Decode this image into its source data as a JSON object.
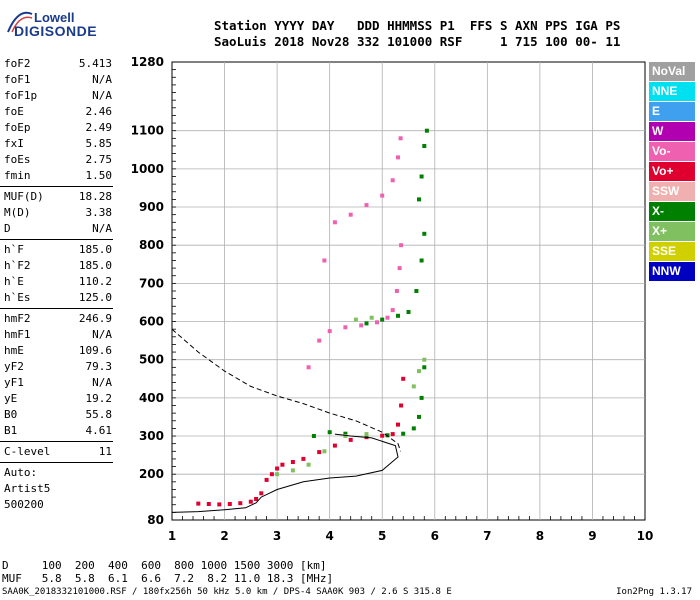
{
  "logo": {
    "top": "Lowell",
    "main": "DIGISONDE"
  },
  "header": {
    "line1": "Station YYYY DAY   DDD HHMMSS P1  FFS S AXN PPS IGA PS",
    "line2": "SaoLuis 2018 Nov28 332 101000 RSF     1 715 100 00- 11"
  },
  "params_group1": [
    {
      "name": "foF2",
      "value": "5.413"
    },
    {
      "name": "foF1",
      "value": "N/A"
    },
    {
      "name": "foF1p",
      "value": "N/A"
    },
    {
      "name": "foE",
      "value": "2.46"
    },
    {
      "name": "foEp",
      "value": "2.49"
    },
    {
      "name": "fxI",
      "value": "5.85"
    },
    {
      "name": "foEs",
      "value": "2.75"
    },
    {
      "name": "fmin",
      "value": "1.50"
    }
  ],
  "params_group2": [
    {
      "name": "MUF(D)",
      "value": "18.28"
    },
    {
      "name": "M(D)",
      "value": "3.38"
    },
    {
      "name": "D",
      "value": "N/A"
    }
  ],
  "params_group3": [
    {
      "name": "h`F",
      "value": "185.0"
    },
    {
      "name": "h`F2",
      "value": "185.0"
    },
    {
      "name": "h`E",
      "value": "110.2"
    },
    {
      "name": "h`Es",
      "value": "125.0"
    }
  ],
  "params_group4": [
    {
      "name": "hmF2",
      "value": "246.9"
    },
    {
      "name": "hmF1",
      "value": "N/A"
    },
    {
      "name": "hmE",
      "value": "109.6"
    },
    {
      "name": "yF2",
      "value": "79.3"
    },
    {
      "name": "yF1",
      "value": "N/A"
    },
    {
      "name": "yE",
      "value": "19.2"
    },
    {
      "name": "B0",
      "value": "55.8"
    },
    {
      "name": "B1",
      "value": "4.61"
    }
  ],
  "clevel": {
    "name": "C-level",
    "value": "11"
  },
  "auto": {
    "line1": "Auto:",
    "line2": "Artist5",
    "line3": "500200"
  },
  "legend": [
    {
      "label": "NoVal",
      "color": "#a0a0a0"
    },
    {
      "label": "NNE",
      "color": "#00e0f0"
    },
    {
      "label": "E",
      "color": "#40a0f0"
    },
    {
      "label": "W",
      "color": "#b000b0"
    },
    {
      "label": "Vo-",
      "color": "#f060b0"
    },
    {
      "label": "Vo+",
      "color": "#e00030"
    },
    {
      "label": "SSW",
      "color": "#f0b0b0"
    },
    {
      "label": "X-",
      "color": "#008000"
    },
    {
      "label": "X+",
      "color": "#80c060"
    },
    {
      "label": "SSE",
      "color": "#d0d000"
    },
    {
      "label": "NNW",
      "color": "#0000c0"
    }
  ],
  "bottom": {
    "d_row": "D     100  200  400  600  800 1000 1500 3000 [km]",
    "muf_row": "MUF   5.8  5.8  6.1  6.6  7.2  8.2 11.0 18.3 [MHz]"
  },
  "footer": {
    "left": "SAA0K_2018332101000.RSF / 180fx256h 50 kHz 5.0 km / DPS-4 SAA0K 903 / 2.6 S 315.8 E",
    "right": "Ion2Png 1.3.17"
  },
  "chart_data": {
    "type": "scatter",
    "title": "",
    "xlabel": "",
    "ylabel": "",
    "xlim": [
      1,
      10
    ],
    "ylim": [
      80,
      1280
    ],
    "x_ticks": [
      "1",
      "2",
      "3",
      "4",
      "5",
      "6",
      "7",
      "8",
      "9",
      "10"
    ],
    "y_ticks": [
      "80",
      "200",
      "300",
      "400",
      "500",
      "600",
      "700",
      "800",
      "900",
      "1000",
      "1100",
      "1280"
    ],
    "grid": true,
    "legend_position": "right",
    "series": [
      {
        "name": "Vo+",
        "color": "#e00030",
        "points": [
          [
            1.5,
            123
          ],
          [
            1.7,
            122
          ],
          [
            1.9,
            121
          ],
          [
            2.1,
            122
          ],
          [
            2.3,
            124
          ],
          [
            2.5,
            128
          ],
          [
            2.6,
            135
          ],
          [
            2.7,
            150
          ],
          [
            2.8,
            185
          ],
          [
            2.9,
            200
          ],
          [
            3.0,
            215
          ],
          [
            3.1,
            225
          ],
          [
            3.3,
            232
          ],
          [
            3.5,
            240
          ],
          [
            3.8,
            258
          ],
          [
            4.1,
            275
          ],
          [
            4.4,
            290
          ],
          [
            4.7,
            297
          ],
          [
            5.0,
            301
          ],
          [
            5.2,
            305
          ],
          [
            5.3,
            330
          ],
          [
            5.36,
            380
          ],
          [
            5.4,
            450
          ]
        ]
      },
      {
        "name": "Vo-",
        "color": "#f060b0",
        "points": [
          [
            3.6,
            480
          ],
          [
            3.8,
            550
          ],
          [
            4.0,
            575
          ],
          [
            4.3,
            585
          ],
          [
            4.6,
            590
          ],
          [
            4.9,
            598
          ],
          [
            5.1,
            610
          ],
          [
            5.2,
            630
          ],
          [
            5.28,
            680
          ],
          [
            5.33,
            740
          ],
          [
            5.36,
            800
          ],
          [
            3.9,
            760
          ],
          [
            4.1,
            860
          ],
          [
            4.4,
            880
          ],
          [
            4.7,
            905
          ],
          [
            5.0,
            930
          ],
          [
            5.2,
            970
          ],
          [
            5.3,
            1030
          ],
          [
            5.35,
            1080
          ]
        ]
      },
      {
        "name": "X-",
        "color": "#008000",
        "points": [
          [
            3.7,
            300
          ],
          [
            4.0,
            310
          ],
          [
            4.3,
            306
          ],
          [
            4.7,
            303
          ],
          [
            5.1,
            302
          ],
          [
            5.4,
            306
          ],
          [
            5.6,
            320
          ],
          [
            5.7,
            350
          ],
          [
            5.75,
            400
          ],
          [
            5.8,
            480
          ],
          [
            4.7,
            595
          ],
          [
            5.0,
            605
          ],
          [
            5.3,
            615
          ],
          [
            5.5,
            625
          ],
          [
            5.65,
            680
          ],
          [
            5.75,
            760
          ],
          [
            5.8,
            830
          ],
          [
            5.7,
            920
          ],
          [
            5.75,
            980
          ],
          [
            5.8,
            1060
          ],
          [
            5.85,
            1100
          ]
        ]
      },
      {
        "name": "X+",
        "color": "#80c060",
        "points": [
          [
            3.0,
            200
          ],
          [
            3.3,
            210
          ],
          [
            3.6,
            225
          ],
          [
            3.9,
            260
          ],
          [
            4.3,
            300
          ],
          [
            4.7,
            305
          ],
          [
            5.6,
            430
          ],
          [
            5.7,
            470
          ],
          [
            5.8,
            500
          ],
          [
            4.5,
            605
          ],
          [
            4.8,
            610
          ]
        ]
      },
      {
        "name": "profile",
        "color": "#000000",
        "points": [
          [
            1.0,
            100
          ],
          [
            1.5,
            102
          ],
          [
            2.0,
            107
          ],
          [
            2.4,
            112
          ],
          [
            2.6,
            125
          ],
          [
            2.7,
            140
          ],
          [
            3.0,
            160
          ],
          [
            3.5,
            180
          ],
          [
            4.0,
            190
          ],
          [
            4.5,
            195
          ],
          [
            5.0,
            210
          ],
          [
            5.3,
            245
          ],
          [
            5.25,
            275
          ],
          [
            4.8,
            295
          ],
          [
            4.4,
            300
          ],
          [
            4.1,
            305
          ]
        ]
      },
      {
        "name": "profile-dashed",
        "color": "#000000",
        "points": [
          [
            1.0,
            580
          ],
          [
            1.5,
            520
          ],
          [
            2.0,
            470
          ],
          [
            2.5,
            430
          ],
          [
            3.0,
            405
          ],
          [
            3.5,
            385
          ],
          [
            4.0,
            360
          ],
          [
            4.5,
            340
          ],
          [
            5.0,
            310
          ],
          [
            5.3,
            280
          ],
          [
            5.35,
            260
          ]
        ]
      }
    ]
  }
}
